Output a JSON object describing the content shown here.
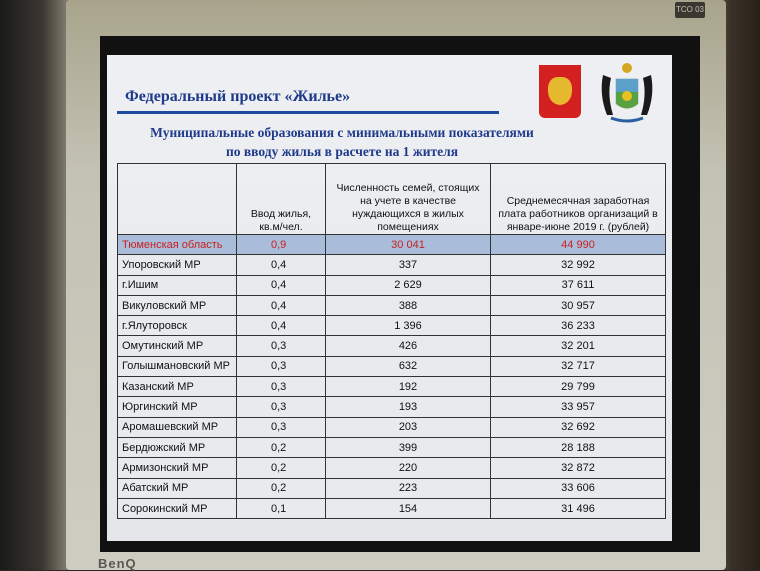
{
  "monitor": {
    "brand": "BenQ",
    "badge": "TCO 03"
  },
  "slide": {
    "title": "Федеральный проект «Жилье»",
    "subtitle_line1": "Муниципальные образования с минимальными показателями",
    "subtitle_line2": "по вводу жилья в расчете на 1 жителя",
    "emblems": [
      "russia-coat-of-arms-icon",
      "tyumen-oblast-coat-of-arms-icon"
    ],
    "highlight_color": "#c82020",
    "title_color": "#1f3a8a"
  },
  "table": {
    "headers": [
      "",
      "Ввод жилья, кв.м/чел.",
      "Численность семей, стоящих на учете в качестве нуждающихся в жилых помещениях",
      "Среднемесячная заработная плата работников организаций в январе-июне 2019 г. (рублей)"
    ],
    "rows": [
      [
        "Тюменская область",
        "0,9",
        "30 041",
        "44 990"
      ],
      [
        "Упоровский МР",
        "0,4",
        "337",
        "32 992"
      ],
      [
        "г.Ишим",
        "0,4",
        "2 629",
        "37 611"
      ],
      [
        "Викуловский МР",
        "0,4",
        "388",
        "30 957"
      ],
      [
        "г.Ялуторовск",
        "0,4",
        "1 396",
        "36 233"
      ],
      [
        "Омутинский МР",
        "0,3",
        "426",
        "32 201"
      ],
      [
        "Голышмановский МР",
        "0,3",
        "632",
        "32 717"
      ],
      [
        "Казанский МР",
        "0,3",
        "192",
        "29 799"
      ],
      [
        "Юргинский МР",
        "0,3",
        "193",
        "33 957"
      ],
      [
        "Аромашевский МР",
        "0,3",
        "203",
        "32 692"
      ],
      [
        "Бердюжский МР",
        "0,2",
        "399",
        "28 188"
      ],
      [
        "Армизонский МР",
        "0,2",
        "220",
        "32 872"
      ],
      [
        "Абатский МР",
        "0,2",
        "223",
        "33 606"
      ],
      [
        "Сорокинский МР",
        "0,1",
        "154",
        "31 496"
      ]
    ]
  }
}
